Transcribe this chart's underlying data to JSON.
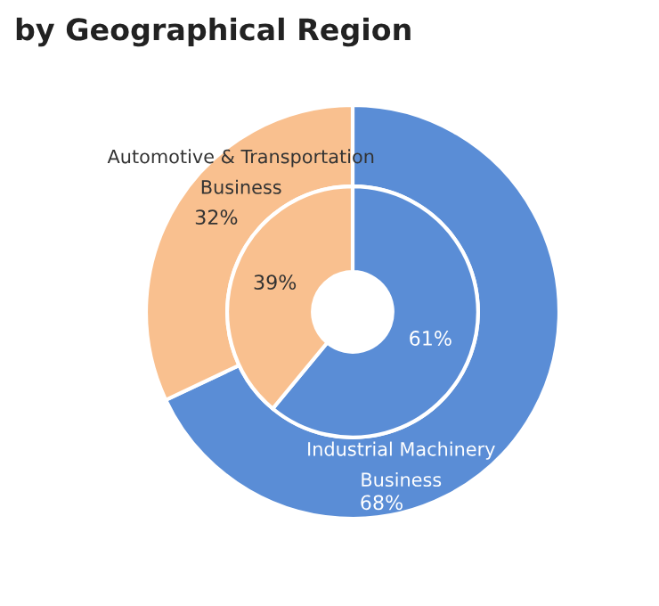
{
  "chart_data": {
    "type": "donut",
    "title": "by Geographical Region",
    "categories": [
      "Industrial Machinery Business",
      "Automotive & Transportation Business"
    ],
    "series": [
      {
        "values": [
          68,
          32
        ],
        "colors": [
          "#5a8dd6",
          "#f9c08f"
        ],
        "value_labels": [
          "68%",
          "32%"
        ]
      },
      {
        "values": [
          61,
          39
        ],
        "colors": [
          "#5a8dd6",
          "#f9c08f"
        ],
        "value_labels": [
          "61%",
          "39%"
        ]
      }
    ],
    "legend": false
  }
}
